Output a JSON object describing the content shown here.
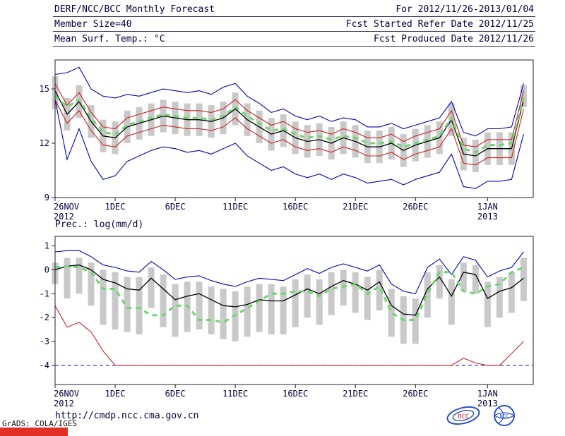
{
  "header": {
    "title": "DERF/NCC/BCC Monthly Forecast",
    "for_range": "For 2012/11/26-2013/01/04",
    "member_size": "Member Size=40",
    "fcst_started": "Fcst Started Refer Date 2012/11/25",
    "variable_label": "Mean Surf. Temp.: °C",
    "fcst_produced": "Fcst Produced Date 2012/11/26"
  },
  "footer": {
    "url": "http://cmdp.ncc.cma.gov.cn",
    "grads_credit": "GrADS: COLA/IGES",
    "bcc_logo_text": "BCC",
    "ncc_logo_text": "NCC"
  },
  "palette": {
    "blue": "#0000bb",
    "red": "#cc2020",
    "black": "#000000",
    "green": "#6fd66f",
    "bar": "#c9c9c9",
    "frame": "#202030",
    "text": "#000040"
  },
  "chart_data": [
    {
      "id": "surface-temperature",
      "type": "line",
      "title": "Mean Surf. Temp.: °C",
      "ylim": [
        9,
        16.6
      ],
      "yticks": [
        9,
        12,
        15
      ],
      "xticks": [
        {
          "day": 0,
          "label": "26NOV",
          "sub": "2012"
        },
        {
          "day": 5,
          "label": "1DEC"
        },
        {
          "day": 10,
          "label": "6DEC"
        },
        {
          "day": 15,
          "label": "11DEC"
        },
        {
          "day": 20,
          "label": "16DEC"
        },
        {
          "day": 25,
          "label": "21DEC"
        },
        {
          "day": 30,
          "label": "26DEC"
        },
        {
          "day": 36,
          "label": "1JAN",
          "sub": "2013"
        }
      ],
      "bars": {
        "name": "ensemble-spread",
        "top": [
          15.7,
          14.5,
          15.2,
          14.1,
          13.3,
          13.2,
          13.8,
          14.0,
          14.2,
          14.4,
          14.3,
          14.2,
          14.2,
          14.1,
          14.3,
          14.8,
          14.2,
          13.8,
          13.4,
          13.6,
          13.2,
          13.0,
          13.1,
          12.9,
          13.2,
          13.0,
          12.7,
          12.7,
          12.9,
          12.5,
          12.8,
          13.0,
          13.2,
          14.2,
          12.3,
          12.2,
          12.6,
          12.6,
          12.6,
          15.2
        ],
        "bottom": [
          13.9,
          12.7,
          13.4,
          12.3,
          11.5,
          11.4,
          12.0,
          12.2,
          12.4,
          12.6,
          12.5,
          12.4,
          12.4,
          12.3,
          12.5,
          13.0,
          12.4,
          12.0,
          11.6,
          11.8,
          11.4,
          11.2,
          11.3,
          11.1,
          11.4,
          11.2,
          10.9,
          10.9,
          11.1,
          10.7,
          11.0,
          11.2,
          11.4,
          12.4,
          10.5,
          10.4,
          10.8,
          10.8,
          10.8,
          14.0
        ]
      },
      "series": [
        {
          "name": "ensemble-max",
          "color": "blue",
          "style": "solid",
          "values": [
            15.8,
            15.9,
            16.2,
            15.0,
            14.6,
            14.5,
            14.7,
            14.6,
            14.8,
            15.0,
            14.9,
            14.8,
            14.9,
            14.7,
            15.1,
            15.3,
            14.6,
            14.2,
            13.7,
            13.9,
            13.5,
            13.3,
            13.5,
            13.2,
            13.4,
            13.3,
            12.9,
            12.9,
            13.1,
            12.8,
            13.0,
            13.2,
            13.4,
            14.3,
            12.6,
            12.4,
            12.8,
            12.8,
            12.9,
            15.3
          ]
        },
        {
          "name": "upper-quartile",
          "color": "red",
          "style": "solid",
          "values": [
            15.3,
            14.1,
            14.8,
            13.7,
            12.9,
            12.8,
            13.4,
            13.6,
            13.8,
            14.0,
            13.9,
            13.8,
            13.8,
            13.7,
            13.9,
            14.4,
            13.8,
            13.4,
            13.0,
            13.2,
            12.8,
            12.6,
            12.7,
            12.5,
            12.8,
            12.6,
            12.3,
            12.3,
            12.5,
            12.1,
            12.4,
            12.6,
            12.8,
            13.8,
            11.9,
            11.8,
            12.2,
            12.2,
            12.2,
            14.9
          ]
        },
        {
          "name": "ensemble-mean",
          "color": "black",
          "style": "solid",
          "values": [
            14.9,
            13.6,
            14.3,
            13.2,
            12.4,
            12.3,
            12.9,
            13.1,
            13.3,
            13.5,
            13.4,
            13.3,
            13.3,
            13.2,
            13.4,
            13.9,
            13.3,
            12.9,
            12.5,
            12.7,
            12.3,
            12.1,
            12.2,
            12.0,
            12.3,
            12.1,
            11.8,
            11.8,
            12.0,
            11.6,
            11.9,
            12.1,
            12.3,
            13.3,
            11.4,
            11.3,
            11.7,
            11.7,
            11.7,
            14.4
          ]
        },
        {
          "name": "lower-quartile",
          "color": "red",
          "style": "solid",
          "values": [
            14.4,
            13.1,
            13.8,
            12.7,
            11.9,
            11.8,
            12.4,
            12.6,
            12.8,
            13.0,
            12.9,
            12.8,
            12.8,
            12.7,
            12.9,
            13.4,
            12.8,
            12.4,
            12.0,
            12.2,
            11.8,
            11.6,
            11.7,
            11.5,
            11.8,
            11.6,
            11.3,
            11.3,
            11.5,
            11.1,
            11.4,
            11.6,
            11.8,
            12.8,
            10.9,
            10.8,
            11.2,
            11.2,
            11.2,
            13.9
          ]
        },
        {
          "name": "ensemble-min",
          "color": "blue",
          "style": "solid",
          "values": [
            14.4,
            11.1,
            12.8,
            11.0,
            10.0,
            10.2,
            11.0,
            11.3,
            11.6,
            11.8,
            11.7,
            11.5,
            11.6,
            11.4,
            11.7,
            12.0,
            11.3,
            10.9,
            10.5,
            10.7,
            10.3,
            10.1,
            10.3,
            10.0,
            10.3,
            10.1,
            9.8,
            9.9,
            10.0,
            9.7,
            10.0,
            10.2,
            10.4,
            11.4,
            9.6,
            9.5,
            9.9,
            9.9,
            10.0,
            12.5
          ]
        },
        {
          "name": "climatology",
          "color": "green",
          "style": "dashed",
          "values": [
            14.6,
            14.0,
            14.4,
            13.4,
            12.6,
            12.5,
            13.0,
            13.2,
            13.4,
            13.6,
            13.5,
            13.4,
            13.4,
            13.3,
            13.5,
            14.0,
            13.5,
            13.1,
            12.7,
            12.8,
            12.5,
            12.3,
            12.4,
            12.2,
            12.4,
            12.3,
            12.0,
            12.0,
            12.1,
            11.8,
            12.0,
            12.2,
            12.4,
            13.4,
            11.7,
            11.5,
            11.9,
            11.9,
            12.0,
            14.5
          ]
        }
      ]
    },
    {
      "id": "precipitation",
      "type": "line",
      "title": "Prec.: log(mm/d)",
      "ylim": [
        -4.8,
        1.4
      ],
      "yticks": [
        1,
        0,
        -1,
        -2,
        -3,
        -4
      ],
      "baseline": -4,
      "xticks": [
        {
          "day": 0,
          "label": "26NOV",
          "sub": "2012"
        },
        {
          "day": 5,
          "label": "1DEC"
        },
        {
          "day": 10,
          "label": "6DEC"
        },
        {
          "day": 15,
          "label": "11DEC"
        },
        {
          "day": 20,
          "label": "16DEC"
        },
        {
          "day": 25,
          "label": "21DEC"
        },
        {
          "day": 30,
          "label": "26DEC"
        },
        {
          "day": 36,
          "label": "1JAN",
          "sub": "2013"
        }
      ],
      "bars": {
        "name": "ensemble-spread",
        "top": [
          0.3,
          0.5,
          0.5,
          0.3,
          0.0,
          -0.1,
          -0.3,
          -0.3,
          0.1,
          -0.2,
          -0.6,
          -0.5,
          -0.5,
          -0.7,
          -0.8,
          -0.9,
          -0.7,
          -0.6,
          -0.6,
          -0.7,
          -0.4,
          -0.2,
          -0.4,
          -0.1,
          0.0,
          -0.1,
          -0.3,
          0.0,
          -0.8,
          -1.1,
          -1.2,
          -0.1,
          0.2,
          -0.4,
          0.3,
          0.2,
          -0.5,
          -0.3,
          -0.1,
          0.5
        ],
        "bottom": [
          -0.6,
          -1.2,
          -1.0,
          -1.5,
          -2.3,
          -2.5,
          -2.6,
          -2.7,
          -1.6,
          -2.4,
          -2.8,
          -2.6,
          -2.5,
          -2.7,
          -2.9,
          -3.0,
          -2.8,
          -2.6,
          -2.7,
          -2.7,
          -2.4,
          -2.0,
          -2.3,
          -1.9,
          -1.5,
          -1.8,
          -2.1,
          -1.7,
          -2.8,
          -3.1,
          -3.1,
          -2.0,
          -1.2,
          -2.3,
          -0.9,
          -1.0,
          -2.4,
          -2.0,
          -1.8,
          -1.3
        ]
      },
      "series": [
        {
          "name": "ensemble-max",
          "color": "blue",
          "style": "solid",
          "values": [
            0.75,
            0.8,
            0.8,
            0.55,
            0.2,
            0.1,
            -0.05,
            -0.1,
            0.35,
            0.0,
            -0.4,
            -0.3,
            -0.25,
            -0.45,
            -0.6,
            -0.7,
            -0.5,
            -0.35,
            -0.4,
            -0.45,
            -0.2,
            0.05,
            -0.15,
            0.1,
            0.25,
            0.1,
            -0.05,
            0.2,
            -0.6,
            -0.9,
            -1.0,
            0.1,
            0.45,
            -0.2,
            0.55,
            0.4,
            -0.3,
            -0.05,
            0.1,
            0.75
          ]
        },
        {
          "name": "ensemble-mean",
          "color": "black",
          "style": "solid",
          "values": [
            0.0,
            0.15,
            0.2,
            0.0,
            -0.4,
            -0.55,
            -0.8,
            -0.85,
            -0.35,
            -0.8,
            -1.25,
            -1.1,
            -1.0,
            -1.25,
            -1.5,
            -1.55,
            -1.45,
            -1.25,
            -1.3,
            -1.3,
            -1.05,
            -0.8,
            -1.0,
            -0.7,
            -0.45,
            -0.6,
            -0.85,
            -0.5,
            -1.5,
            -1.85,
            -1.9,
            -0.8,
            -0.3,
            -1.1,
            -0.1,
            -0.2,
            -1.2,
            -0.9,
            -0.75,
            -0.35
          ]
        },
        {
          "name": "ensemble-min",
          "color": "red",
          "style": "solid",
          "values": [
            -1.5,
            -2.4,
            -2.2,
            -2.6,
            -3.4,
            -4.0,
            -4.0,
            -4.0,
            -4.0,
            -4.0,
            -4.0,
            -4.0,
            -4.0,
            -4.0,
            -4.0,
            -4.0,
            -4.0,
            -4.0,
            -4.0,
            -4.0,
            -4.0,
            -4.0,
            -4.0,
            -4.0,
            -4.0,
            -4.0,
            -4.0,
            -4.0,
            -4.0,
            -4.0,
            -4.0,
            -4.0,
            -4.0,
            -4.0,
            -3.7,
            -3.9,
            -4.0,
            -4.0,
            -3.5,
            -3.0
          ]
        },
        {
          "name": "climatology",
          "color": "green",
          "style": "dashed",
          "values": [
            0.1,
            0.15,
            0.1,
            -0.1,
            -0.8,
            -0.8,
            -1.6,
            -1.6,
            -1.9,
            -1.9,
            -1.5,
            -1.5,
            -2.1,
            -2.1,
            -2.2,
            -1.9,
            -1.6,
            -1.3,
            -1.0,
            -1.0,
            -0.9,
            -0.9,
            -1.1,
            -0.8,
            -0.7,
            -0.6,
            -1.0,
            -0.7,
            -1.8,
            -2.1,
            -2.1,
            -1.0,
            -0.1,
            -0.1,
            -0.9,
            -1.0,
            -0.7,
            -0.6,
            -0.1,
            0.1
          ]
        }
      ]
    }
  ]
}
